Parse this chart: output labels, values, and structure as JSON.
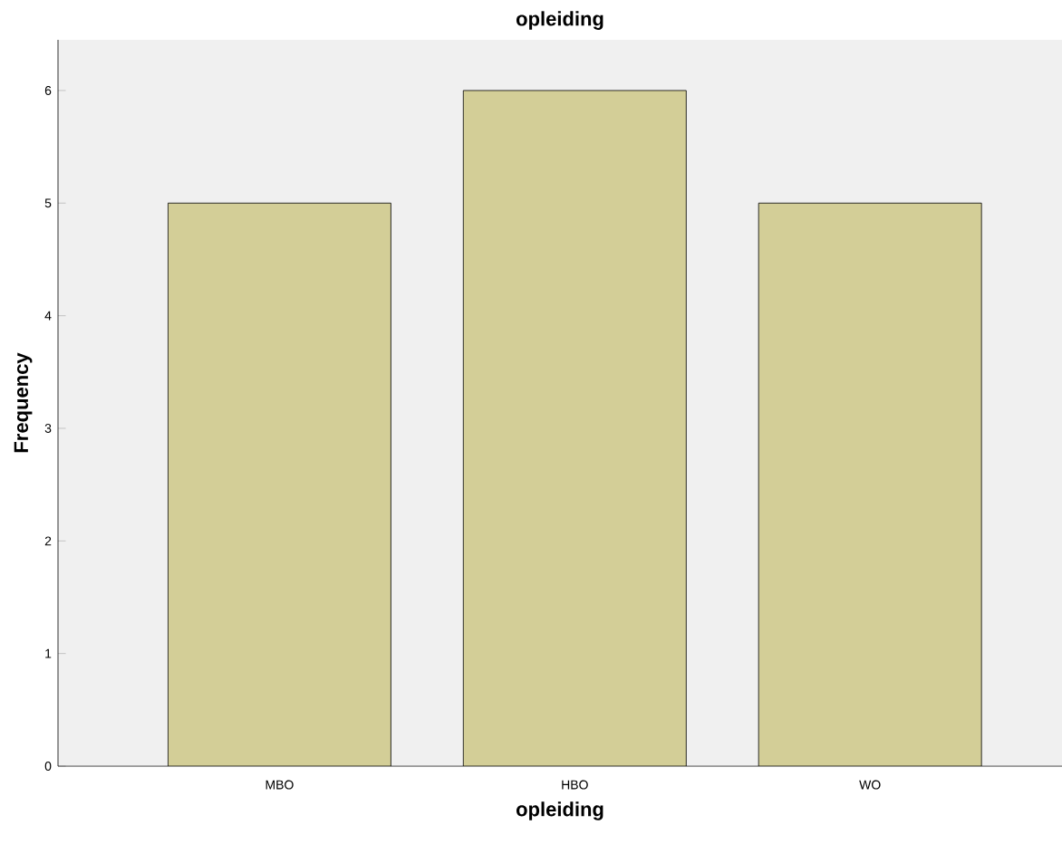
{
  "chart_data": {
    "type": "bar",
    "title": "opleiding",
    "xlabel": "opleiding",
    "ylabel": "Frequency",
    "categories": [
      "MBO",
      "HBO",
      "WO"
    ],
    "values": [
      5,
      6,
      5
    ],
    "color": "#d3ce97",
    "ylim": [
      0,
      6.45
    ],
    "yticks": [
      0,
      1,
      2,
      3,
      4,
      5,
      6
    ]
  }
}
